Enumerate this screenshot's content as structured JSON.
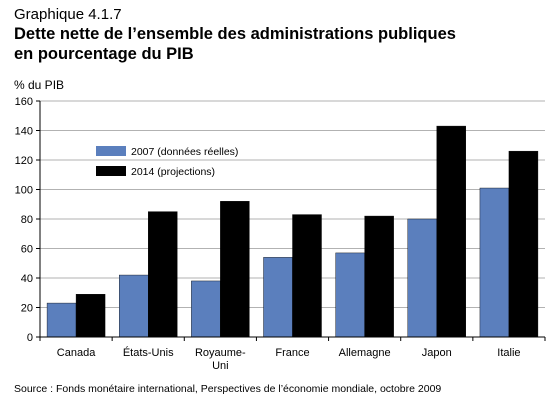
{
  "caption": "Graphique 4.1.7",
  "title_line1": "Dette nette de l’ensemble des administrations publiques",
  "title_line2": "en pourcentage du PIB",
  "source": "Source : Fonds monétaire international, Perspectives de l’économie mondiale, octobre 2009",
  "colors": {
    "series_2007": "#5b7fbd",
    "series_2014": "#000000"
  },
  "chart_data": {
    "type": "bar",
    "title": "Dette nette de l’ensemble des administrations publiques en pourcentage du PIB",
    "ylabel": "% du PIB",
    "xlabel": "",
    "ylim": [
      0,
      160
    ],
    "yticks": [
      0,
      20,
      40,
      60,
      80,
      100,
      120,
      140,
      160
    ],
    "grid": true,
    "legend_position": "upper-left",
    "categories": [
      [
        "Canada"
      ],
      [
        "États-Unis"
      ],
      [
        "Royaume-",
        "Uni"
      ],
      [
        "France"
      ],
      [
        "Allemagne"
      ],
      [
        "Japon"
      ],
      [
        "Italie"
      ]
    ],
    "series": [
      {
        "name": "2007 (données réelles)",
        "values": [
          23,
          42,
          38,
          54,
          57,
          80,
          101
        ]
      },
      {
        "name": "2014 (projections)",
        "values": [
          29,
          85,
          92,
          83,
          82,
          143,
          126
        ]
      }
    ]
  }
}
